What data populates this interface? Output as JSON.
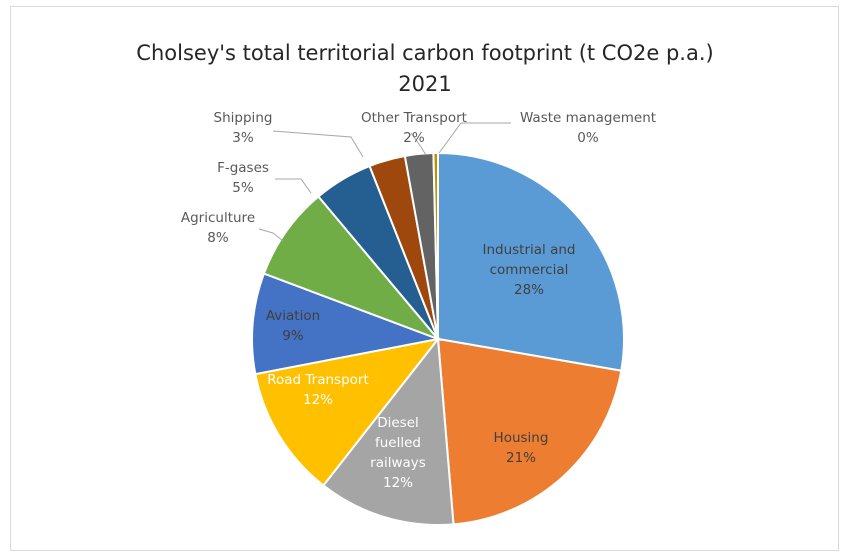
{
  "chart_data": {
    "type": "pie",
    "title_lines": [
      "Cholsey's total territorial carbon footprint (t CO2e p.a.)",
      "2021"
    ],
    "start_angle_deg": 0,
    "direction": "clockwise",
    "slices": [
      {
        "name": "Industrial and commercial",
        "label_lines": [
          "Industrial and",
          "commercial"
        ],
        "percent_label": "28%",
        "value": 28.2,
        "color": "#5b9bd5",
        "label_color": "#404040",
        "label_inside": true
      },
      {
        "name": "Housing",
        "label_lines": [
          "Housing"
        ],
        "percent_label": "21%",
        "value": 21.3,
        "color": "#ed7d31",
        "label_color": "#404040",
        "label_inside": true
      },
      {
        "name": "Diesel fuelled railways",
        "label_lines": [
          "Diesel",
          "fuelled",
          "railways"
        ],
        "percent_label": "12%",
        "value": 12.1,
        "color": "#a5a5a5",
        "label_color": "#ffffff",
        "label_inside": true
      },
      {
        "name": "Road Transport",
        "label_lines": [
          "Road Transport"
        ],
        "percent_label": "12%",
        "value": 11.6,
        "color": "#ffc000",
        "label_color": "#ffffff",
        "label_inside": true
      },
      {
        "name": "Aviation",
        "label_lines": [
          "Aviation"
        ],
        "percent_label": "9%",
        "value": 8.9,
        "color": "#4472c4",
        "label_color": "#404040",
        "label_inside": true
      },
      {
        "name": "Agriculture",
        "label_lines": [
          "Agriculture"
        ],
        "percent_label": "8%",
        "value": 8.3,
        "color": "#70ad47",
        "label_color": "#595959",
        "label_inside": false
      },
      {
        "name": "F-gases",
        "label_lines": [
          "F-gases"
        ],
        "percent_label": "5%",
        "value": 5.2,
        "color": "#255e91",
        "label_color": "#595959",
        "label_inside": false
      },
      {
        "name": "Shipping",
        "label_lines": [
          "Shipping"
        ],
        "percent_label": "3%",
        "value": 3.2,
        "color": "#9e480e",
        "label_color": "#595959",
        "label_inside": false
      },
      {
        "name": "Other Transport",
        "label_lines": [
          "Other Transport"
        ],
        "percent_label": "2%",
        "value": 2.5,
        "color": "#636363",
        "label_color": "#595959",
        "label_inside": false
      },
      {
        "name": "Waste management",
        "label_lines": [
          "Waste management"
        ],
        "percent_label": "0%",
        "value": 0.4,
        "color": "#c09000",
        "label_color": "#595959",
        "label_inside": false
      }
    ],
    "legend": "none"
  }
}
